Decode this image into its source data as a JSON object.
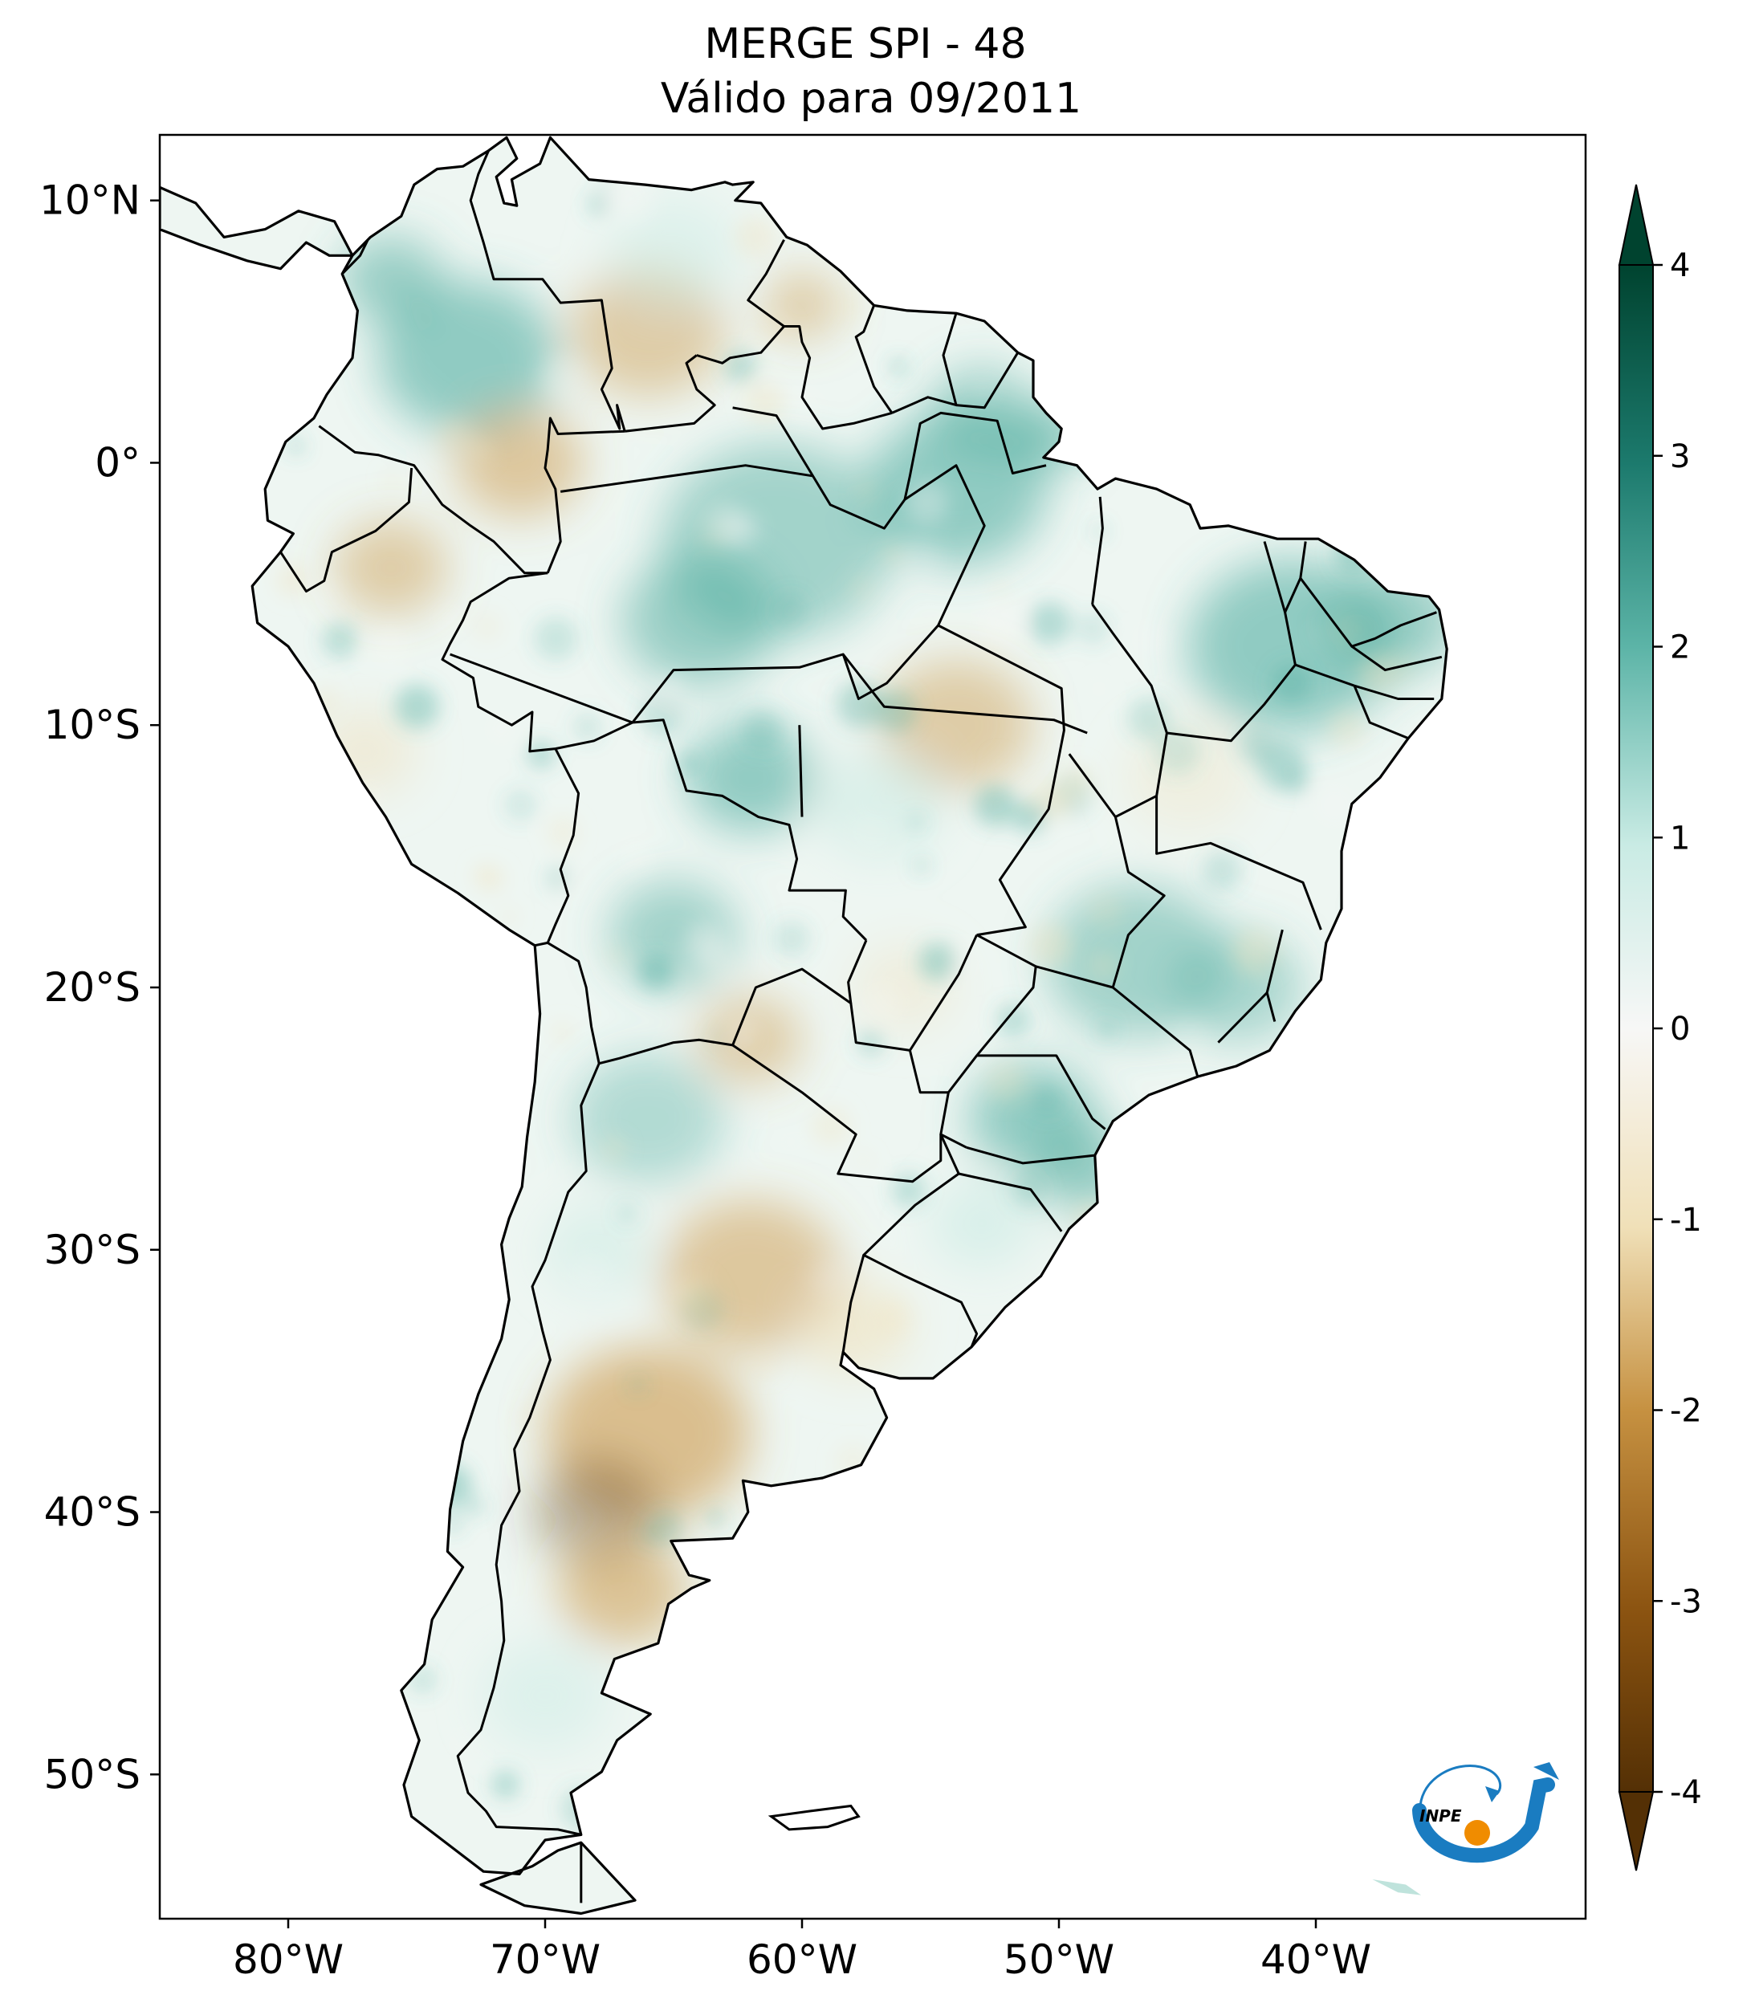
{
  "title": {
    "line1": "MERGE   SPI - 48",
    "line2": "Válido para 09/2011"
  },
  "map": {
    "lon_range": [
      -85,
      -29.5
    ],
    "lat_range": [
      -55.5,
      12.5
    ],
    "lon_ticks": [
      {
        "value": -80,
        "label": "80°W"
      },
      {
        "value": -70,
        "label": "70°W"
      },
      {
        "value": -60,
        "label": "60°W"
      },
      {
        "value": -50,
        "label": "50°W"
      },
      {
        "value": -40,
        "label": "40°W"
      }
    ],
    "lat_ticks": [
      {
        "value": 10,
        "label": "10°N"
      },
      {
        "value": 0,
        "label": "0°"
      },
      {
        "value": -10,
        "label": "10°S"
      },
      {
        "value": -20,
        "label": "20°S"
      },
      {
        "value": -30,
        "label": "30°S"
      },
      {
        "value": -40,
        "label": "40°S"
      },
      {
        "value": -50,
        "label": "50°S"
      }
    ],
    "field": "SPI-48 precipitation index over South America",
    "colors": {
      "wet_strong": "#0b4d43",
      "wet_mid": "#45a89a",
      "wet_light": "#c9ebe4",
      "neutral": "#f7f7f5",
      "dry_light": "#f0e2c0",
      "dry_mid": "#cd9a4c",
      "dry_strong": "#5a340a"
    }
  },
  "colorbar": {
    "min": -4,
    "max": 4,
    "extend": "both",
    "ticks": [
      {
        "value": 4,
        "label": "4"
      },
      {
        "value": 3,
        "label": "3"
      },
      {
        "value": 2,
        "label": "2"
      },
      {
        "value": 1,
        "label": "1"
      },
      {
        "value": 0,
        "label": "0"
      },
      {
        "value": -1,
        "label": "-1"
      },
      {
        "value": -2,
        "label": "-2"
      },
      {
        "value": -3,
        "label": "-3"
      },
      {
        "value": -4,
        "label": "-4"
      }
    ]
  },
  "logo": {
    "text": "INPE",
    "icon": "inpe-logo-icon",
    "colors": {
      "arrow": "#1a7cc1",
      "dot": "#f08c00"
    }
  }
}
